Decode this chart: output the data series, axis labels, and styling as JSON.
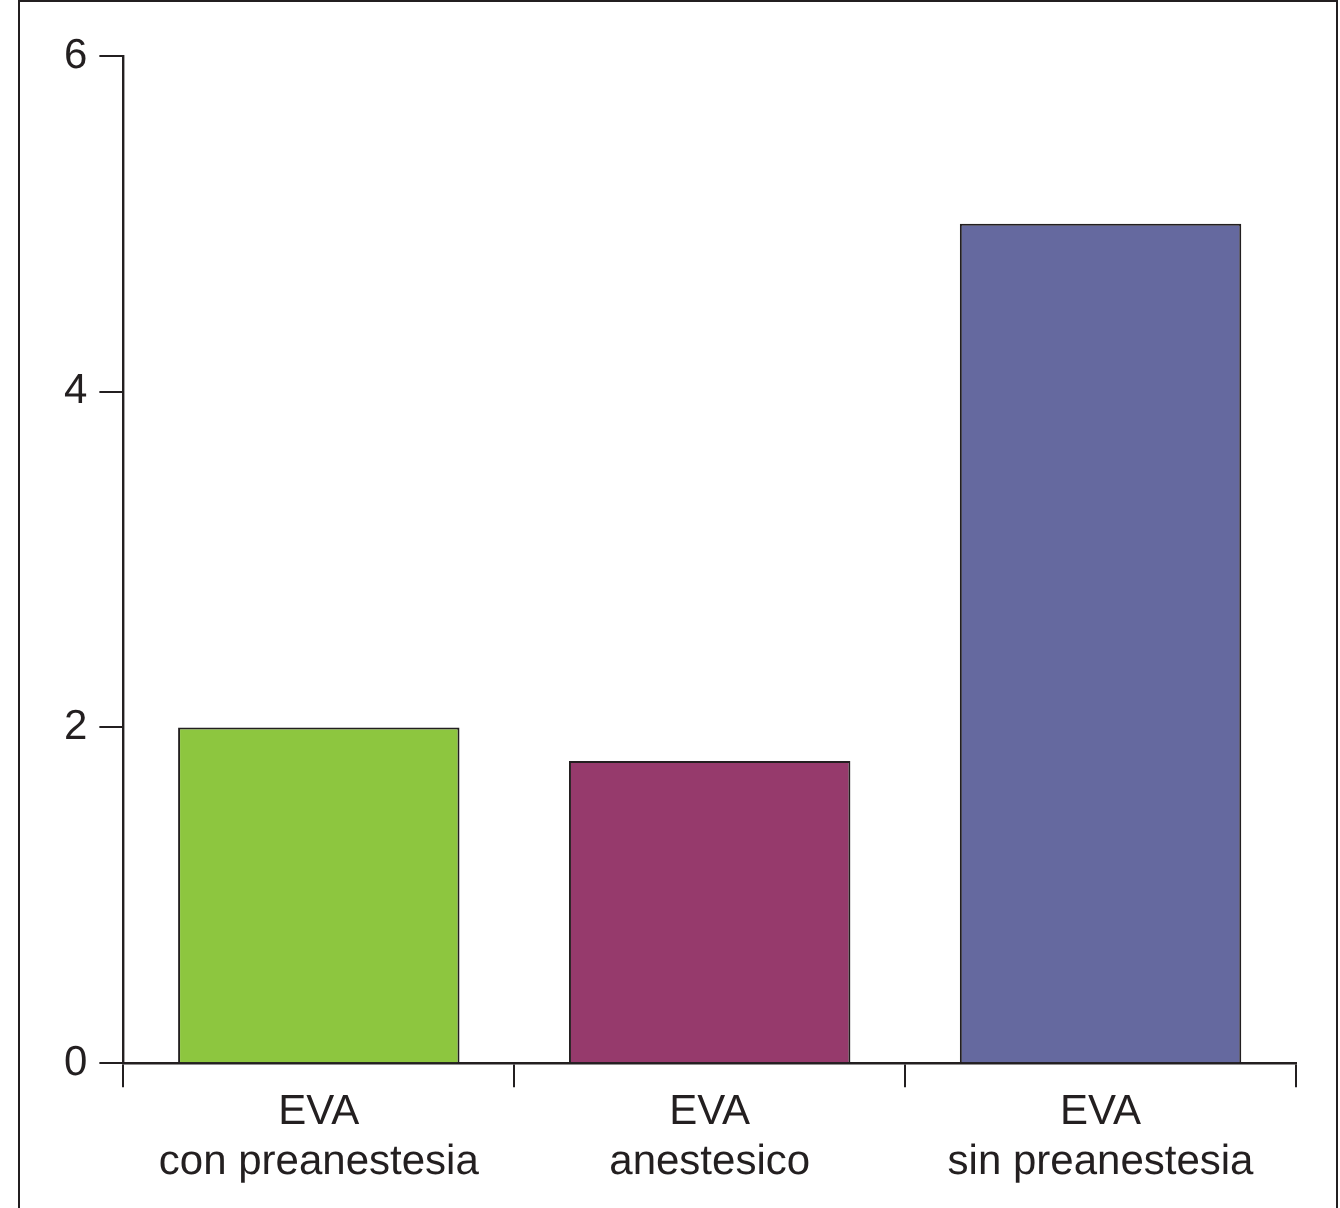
{
  "chart_data": {
    "type": "bar",
    "categories": [
      "EVA\ncon preanestesia",
      "EVA\nanestesico",
      "EVA\nsin preanestesia"
    ],
    "values": [
      2,
      1.8,
      5
    ],
    "colors": [
      "#8dc63f",
      "#963a6c",
      "#65699f"
    ],
    "ylim": [
      0,
      6
    ],
    "yticks": [
      0,
      2,
      4,
      6
    ],
    "grid": false,
    "legend": false
  }
}
